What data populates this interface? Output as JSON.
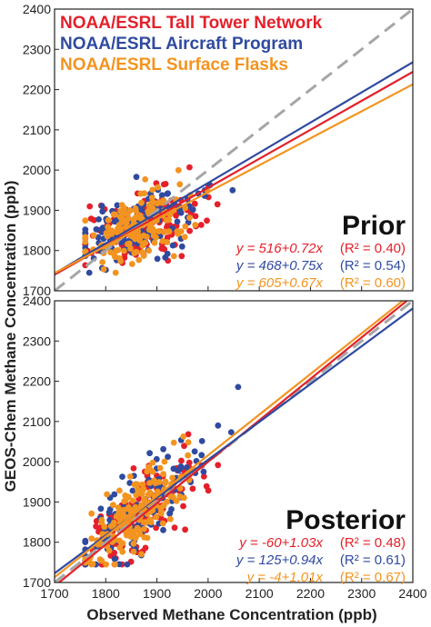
{
  "figure": {
    "ylabel": "GEOS-Chem Methane Concentration (ppb)",
    "xlabel": "Observed Methane Concentration (ppb)"
  },
  "colors": {
    "tall_tower": "#e4202a",
    "aircraft": "#2f4aa0",
    "surface": "#f39420",
    "one_to_one": "#a6a6a6"
  },
  "chart_data": [
    {
      "type": "scatter",
      "panel_label": "Prior",
      "xlim": [
        1700,
        2400
      ],
      "ylim": [
        1700,
        2400
      ],
      "x_ticks": [
        1700,
        1800,
        1900,
        2000,
        2100,
        2200,
        2300,
        2400
      ],
      "y_ticks": [
        1700,
        1800,
        1900,
        2000,
        2100,
        2200,
        2300,
        2400
      ],
      "legend": [
        "NOAA/ESRL Tall Tower Network",
        "NOAA/ESRL Aircraft Program",
        "NOAA/ESRL Surface Flasks"
      ],
      "series": [
        {
          "name": "NOAA/ESRL Tall Tower Network",
          "fit": {
            "intercept": 516,
            "slope": 0.72,
            "r2": 0.4
          },
          "eq": "y = 516+0.72x",
          "r2_text": "(R² = 0.40)"
        },
        {
          "name": "NOAA/ESRL Aircraft Program",
          "fit": {
            "intercept": 468,
            "slope": 0.75,
            "r2": 0.54
          },
          "eq": "y = 468+0.75x",
          "r2_text": "(R² = 0.54)"
        },
        {
          "name": "NOAA/ESRL Surface Flasks",
          "fit": {
            "intercept": 605,
            "slope": 0.67,
            "r2": 0.6
          },
          "eq": "y = 605+0.67x",
          "r2_text": "(R² = 0.60)"
        }
      ]
    },
    {
      "type": "scatter",
      "panel_label": "Posterior",
      "xlim": [
        1700,
        2400
      ],
      "ylim": [
        1700,
        2400
      ],
      "x_ticks": [
        1700,
        1800,
        1900,
        2000,
        2100,
        2200,
        2300,
        2400
      ],
      "x_tick_labels": [
        "1700",
        "1800",
        "1900",
        "2000",
        "2100",
        "2200",
        "2300",
        "2400"
      ],
      "y_ticks": [
        1700,
        1800,
        1900,
        2000,
        2100,
        2200,
        2300,
        2400
      ],
      "series": [
        {
          "name": "NOAA/ESRL Tall Tower Network",
          "fit": {
            "intercept": -60,
            "slope": 1.03,
            "r2": 0.48
          },
          "eq": "y = -60+1.03x",
          "r2_text": "(R² = 0.48)"
        },
        {
          "name": "NOAA/ESRL Aircraft Program",
          "fit": {
            "intercept": 125,
            "slope": 0.94,
            "r2": 0.61
          },
          "eq": "y = 125+0.94x",
          "r2_text": "(R² = 0.61)"
        },
        {
          "name": "NOAA/ESRL Surface Flasks",
          "fit": {
            "intercept": -4,
            "slope": 1.01,
            "r2": 0.67
          },
          "eq": "y = -4+1.01x",
          "r2_text": "(R² = 0.67)"
        }
      ]
    }
  ]
}
